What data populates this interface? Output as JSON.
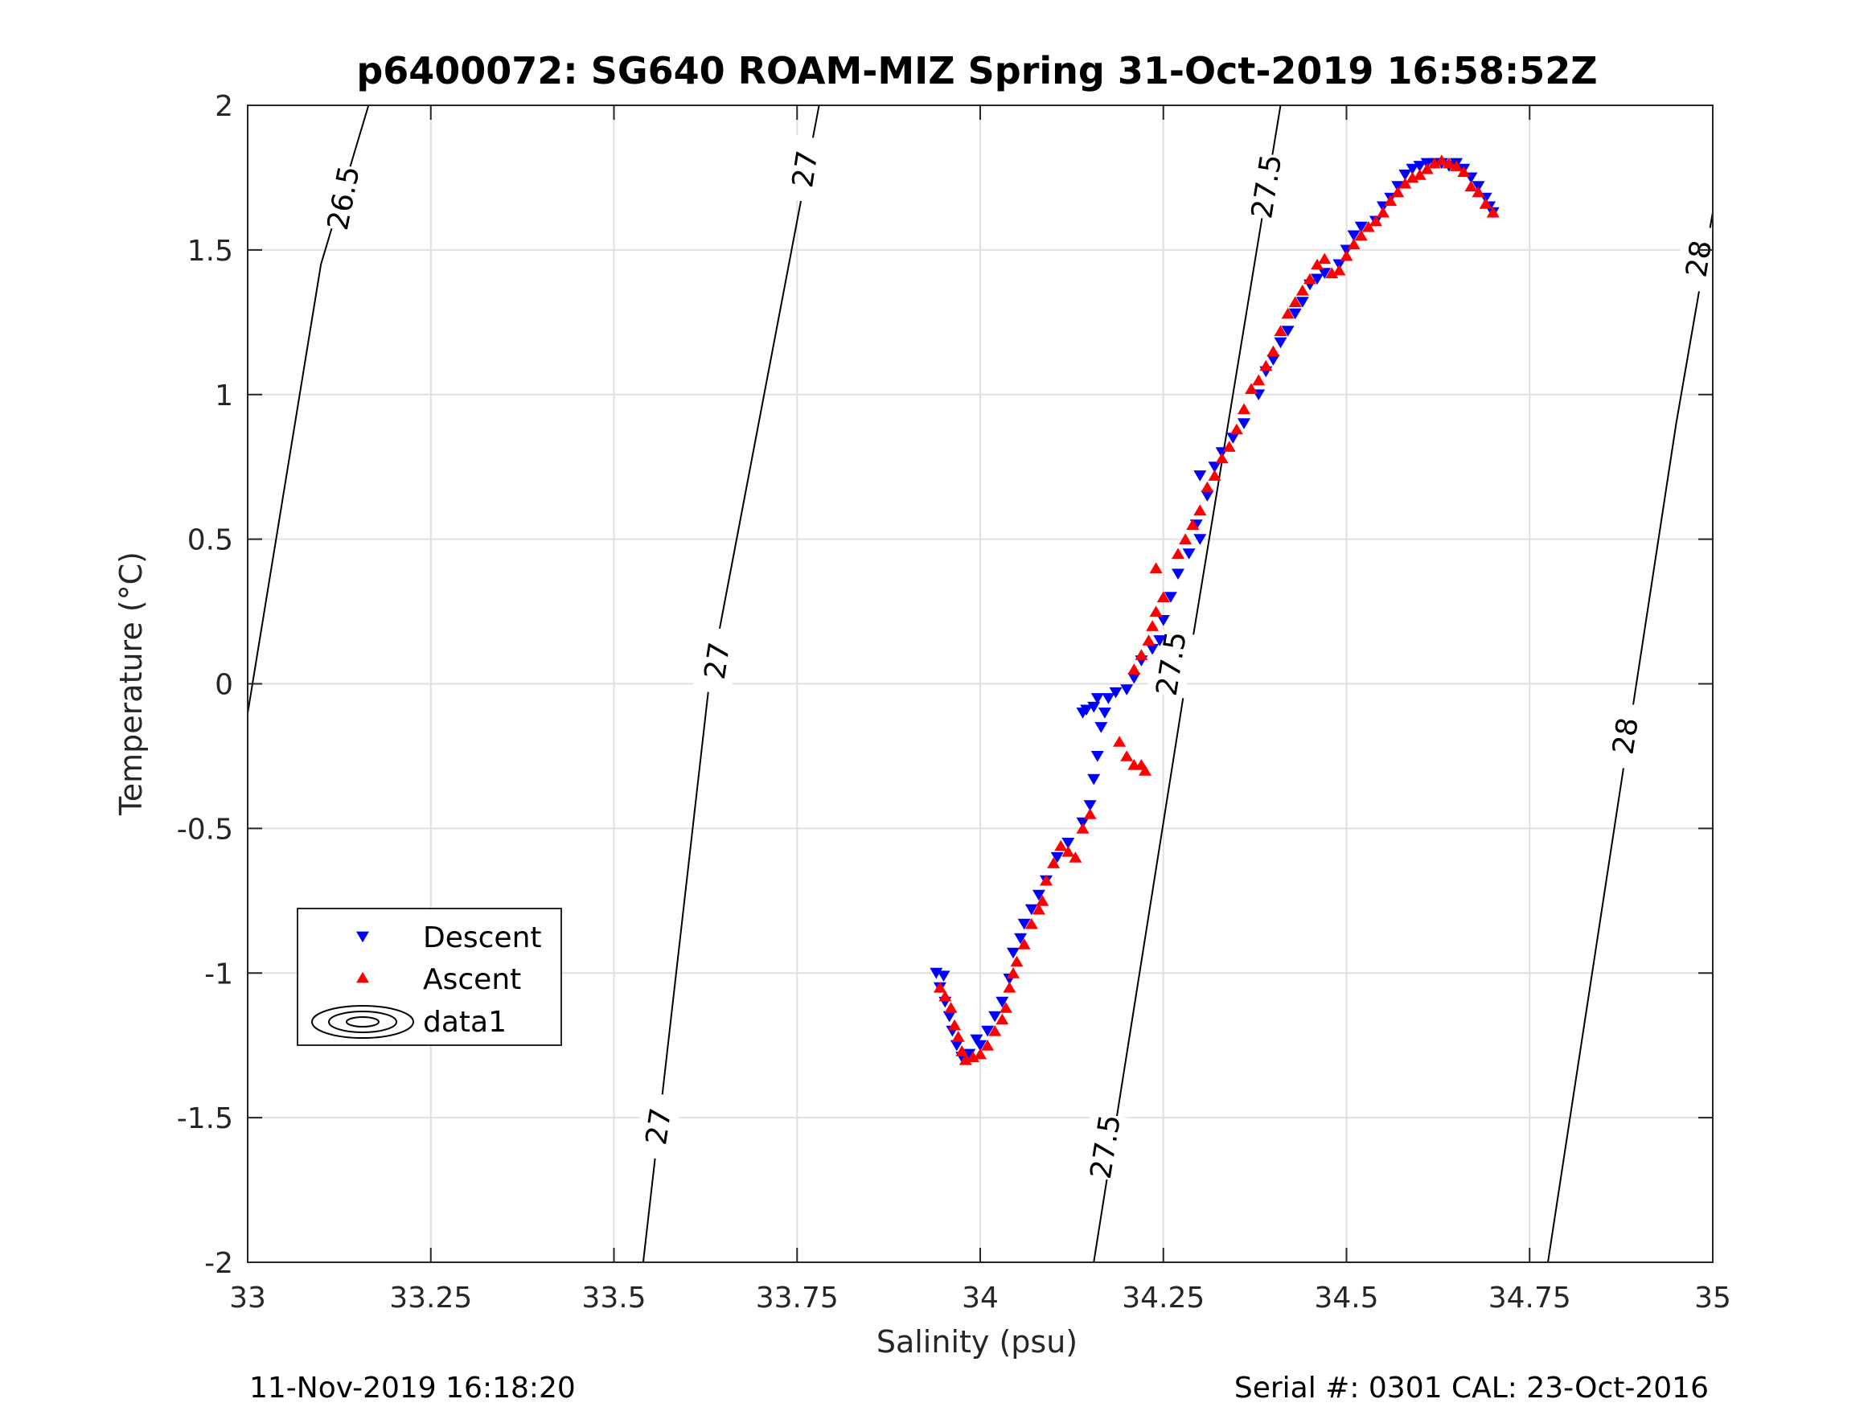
{
  "chart_data": {
    "type": "scatter",
    "title": "p6400072: SG640 ROAM-MIZ Spring 31-Oct-2019 16:58:52Z",
    "xlabel": "Salinity (psu)",
    "ylabel": "Temperature (°C)",
    "xlim": [
      33,
      35
    ],
    "ylim": [
      -2,
      2
    ],
    "grid": true,
    "x_ticks": [
      33,
      33.25,
      33.5,
      33.75,
      34,
      34.25,
      34.5,
      34.75,
      35
    ],
    "x_tick_labels": [
      "33",
      "33.25",
      "33.5",
      "33.75",
      "34",
      "34.25",
      "34.5",
      "34.75",
      "35"
    ],
    "y_ticks": [
      2,
      1.5,
      1,
      0.5,
      0,
      -0.5,
      -1,
      -1.5,
      -2
    ],
    "y_tick_labels": [
      "2",
      "1.5",
      "1",
      "0.5",
      "0",
      "-0.5",
      "-1",
      "-1.5",
      "-2"
    ],
    "legend": {
      "placement": "lower-left",
      "entries": [
        {
          "label": "Descent",
          "marker": "triangle-down",
          "color": "#0000ff"
        },
        {
          "label": "Ascent",
          "marker": "triangle-up",
          "color": "#ff0000"
        },
        {
          "label": "data1",
          "marker": "contour",
          "color": "#000000"
        }
      ]
    },
    "contours": [
      {
        "level": "26.5",
        "points": [
          [
            32.995,
            -0.18
          ],
          [
            33.1,
            1.45
          ],
          [
            33.165,
            2.0
          ]
        ],
        "labels": [
          [
            33.13,
            1.68
          ]
        ]
      },
      {
        "level": "27",
        "points": [
          [
            33.54,
            -2.0
          ],
          [
            33.63,
            0.0
          ],
          [
            33.78,
            2.0
          ]
        ],
        "labels": [
          [
            33.56,
            -1.53
          ],
          [
            33.64,
            0.08
          ],
          [
            33.76,
            1.78
          ]
        ]
      },
      {
        "level": "27.5",
        "points": [
          [
            34.155,
            -2.0
          ],
          [
            34.28,
            0.0
          ],
          [
            34.41,
            2.0
          ]
        ],
        "labels": [
          [
            34.17,
            -1.6
          ],
          [
            34.26,
            0.07
          ],
          [
            34.39,
            1.72
          ]
        ]
      },
      {
        "level": "28",
        "points": [
          [
            34.775,
            -2.0
          ],
          [
            34.95,
            0.9
          ],
          [
            35.0,
            1.63
          ]
        ],
        "labels": [
          [
            34.88,
            -0.18
          ],
          [
            34.98,
            1.47
          ]
        ]
      }
    ],
    "series": [
      {
        "name": "Descent",
        "color": "#0000ff",
        "marker": "triangle-down",
        "points": [
          [
            33.94,
            -1.0
          ],
          [
            33.95,
            -1.01
          ],
          [
            33.945,
            -1.05
          ],
          [
            33.952,
            -1.1
          ],
          [
            33.958,
            -1.15
          ],
          [
            33.962,
            -1.2
          ],
          [
            33.968,
            -1.25
          ],
          [
            33.975,
            -1.29
          ],
          [
            33.985,
            -1.28
          ],
          [
            33.995,
            -1.23
          ],
          [
            34.0,
            -1.25
          ],
          [
            34.01,
            -1.2
          ],
          [
            34.02,
            -1.15
          ],
          [
            34.03,
            -1.1
          ],
          [
            34.04,
            -1.02
          ],
          [
            34.045,
            -0.93
          ],
          [
            34.055,
            -0.88
          ],
          [
            34.06,
            -0.83
          ],
          [
            34.07,
            -0.78
          ],
          [
            34.08,
            -0.73
          ],
          [
            34.09,
            -0.68
          ],
          [
            34.105,
            -0.6
          ],
          [
            34.12,
            -0.55
          ],
          [
            34.14,
            -0.48
          ],
          [
            34.15,
            -0.42
          ],
          [
            34.155,
            -0.33
          ],
          [
            34.16,
            -0.25
          ],
          [
            34.165,
            -0.15
          ],
          [
            34.17,
            -0.1
          ],
          [
            34.155,
            -0.08
          ],
          [
            34.145,
            -0.09
          ],
          [
            34.14,
            -0.1
          ],
          [
            34.16,
            -0.05
          ],
          [
            34.175,
            -0.05
          ],
          [
            34.185,
            -0.03
          ],
          [
            34.2,
            -0.02
          ],
          [
            34.21,
            0.02
          ],
          [
            34.22,
            0.08
          ],
          [
            34.235,
            0.12
          ],
          [
            34.245,
            0.15
          ],
          [
            34.25,
            0.22
          ],
          [
            34.26,
            0.3
          ],
          [
            34.27,
            0.38
          ],
          [
            34.285,
            0.45
          ],
          [
            34.3,
            0.5
          ],
          [
            34.295,
            0.55
          ],
          [
            34.31,
            0.65
          ],
          [
            34.3,
            0.72
          ],
          [
            34.32,
            0.75
          ],
          [
            34.33,
            0.8
          ],
          [
            34.345,
            0.85
          ],
          [
            34.36,
            0.9
          ],
          [
            34.38,
            1.0
          ],
          [
            34.39,
            1.08
          ],
          [
            34.4,
            1.12
          ],
          [
            34.41,
            1.18
          ],
          [
            34.42,
            1.22
          ],
          [
            34.43,
            1.28
          ],
          [
            34.44,
            1.32
          ],
          [
            34.45,
            1.38
          ],
          [
            34.46,
            1.4
          ],
          [
            34.47,
            1.42
          ],
          [
            34.49,
            1.45
          ],
          [
            34.5,
            1.5
          ],
          [
            34.51,
            1.55
          ],
          [
            34.52,
            1.58
          ],
          [
            34.54,
            1.6
          ],
          [
            34.55,
            1.65
          ],
          [
            34.56,
            1.68
          ],
          [
            34.57,
            1.72
          ],
          [
            34.58,
            1.76
          ],
          [
            34.59,
            1.78
          ],
          [
            34.6,
            1.79
          ],
          [
            34.61,
            1.8
          ],
          [
            34.62,
            1.8
          ],
          [
            34.63,
            1.8
          ],
          [
            34.64,
            1.79
          ],
          [
            34.65,
            1.8
          ],
          [
            34.66,
            1.78
          ],
          [
            34.67,
            1.75
          ],
          [
            34.68,
            1.72
          ],
          [
            34.69,
            1.68
          ],
          [
            34.695,
            1.65
          ],
          [
            34.7,
            1.63
          ]
        ]
      },
      {
        "name": "Ascent",
        "color": "#ff0000",
        "marker": "triangle-up",
        "points": [
          [
            33.945,
            -1.05
          ],
          [
            33.952,
            -1.08
          ],
          [
            33.96,
            -1.12
          ],
          [
            33.965,
            -1.18
          ],
          [
            33.97,
            -1.22
          ],
          [
            33.975,
            -1.27
          ],
          [
            33.98,
            -1.3
          ],
          [
            33.99,
            -1.29
          ],
          [
            34.0,
            -1.28
          ],
          [
            34.01,
            -1.25
          ],
          [
            34.02,
            -1.2
          ],
          [
            34.03,
            -1.16
          ],
          [
            34.035,
            -1.12
          ],
          [
            34.04,
            -1.05
          ],
          [
            34.045,
            -1.0
          ],
          [
            34.05,
            -0.96
          ],
          [
            34.06,
            -0.9
          ],
          [
            34.07,
            -0.83
          ],
          [
            34.08,
            -0.78
          ],
          [
            34.085,
            -0.75
          ],
          [
            34.09,
            -0.68
          ],
          [
            34.1,
            -0.62
          ],
          [
            34.11,
            -0.56
          ],
          [
            34.12,
            -0.58
          ],
          [
            34.13,
            -0.6
          ],
          [
            34.14,
            -0.5
          ],
          [
            34.15,
            -0.45
          ],
          [
            34.19,
            -0.2
          ],
          [
            34.2,
            -0.25
          ],
          [
            34.21,
            -0.28
          ],
          [
            34.22,
            -0.28
          ],
          [
            34.225,
            -0.3
          ],
          [
            34.21,
            0.05
          ],
          [
            34.22,
            0.1
          ],
          [
            34.23,
            0.15
          ],
          [
            34.235,
            0.2
          ],
          [
            34.24,
            0.25
          ],
          [
            34.25,
            0.3
          ],
          [
            34.24,
            0.4
          ],
          [
            34.27,
            0.45
          ],
          [
            34.28,
            0.5
          ],
          [
            34.29,
            0.55
          ],
          [
            34.3,
            0.6
          ],
          [
            34.31,
            0.68
          ],
          [
            34.32,
            0.72
          ],
          [
            34.33,
            0.78
          ],
          [
            34.34,
            0.82
          ],
          [
            34.35,
            0.88
          ],
          [
            34.36,
            0.95
          ],
          [
            34.37,
            1.02
          ],
          [
            34.38,
            1.05
          ],
          [
            34.39,
            1.1
          ],
          [
            34.4,
            1.15
          ],
          [
            34.41,
            1.22
          ],
          [
            34.42,
            1.28
          ],
          [
            34.43,
            1.32
          ],
          [
            34.44,
            1.36
          ],
          [
            34.45,
            1.4
          ],
          [
            34.46,
            1.45
          ],
          [
            34.47,
            1.47
          ],
          [
            34.48,
            1.42
          ],
          [
            34.49,
            1.43
          ],
          [
            34.5,
            1.48
          ],
          [
            34.51,
            1.52
          ],
          [
            34.52,
            1.55
          ],
          [
            34.53,
            1.58
          ],
          [
            34.54,
            1.6
          ],
          [
            34.55,
            1.63
          ],
          [
            34.56,
            1.67
          ],
          [
            34.57,
            1.7
          ],
          [
            34.58,
            1.73
          ],
          [
            34.59,
            1.75
          ],
          [
            34.6,
            1.76
          ],
          [
            34.61,
            1.78
          ],
          [
            34.62,
            1.8
          ],
          [
            34.63,
            1.81
          ],
          [
            34.64,
            1.8
          ],
          [
            34.65,
            1.79
          ],
          [
            34.66,
            1.77
          ],
          [
            34.67,
            1.72
          ],
          [
            34.68,
            1.7
          ],
          [
            34.69,
            1.66
          ],
          [
            34.7,
            1.63
          ]
        ]
      }
    ]
  },
  "footer": {
    "left": "11-Nov-2019 16:18:20",
    "right": "Serial #: 0301  CAL: 23-Oct-2016"
  }
}
